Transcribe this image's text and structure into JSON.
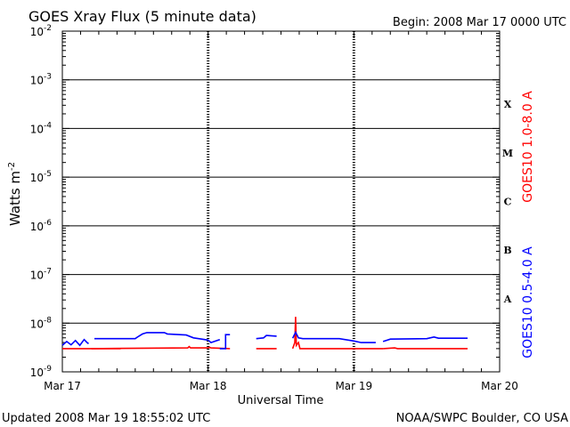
{
  "chart_data": {
    "type": "line",
    "title": "GOES Xray Flux (5 minute data)",
    "begin_label": "Begin:  2008 Mar 17 0000 UTC",
    "ylabel": "Watts m",
    "ylabel_sup": "-2",
    "xlabel": "Universal Time",
    "y_scale": "log",
    "ylim": [
      1e-09,
      0.01
    ],
    "y_ticks": [
      {
        "mantissa": "10",
        "exp": "-2",
        "value": 0.01
      },
      {
        "mantissa": "10",
        "exp": "-3",
        "value": 0.001
      },
      {
        "mantissa": "10",
        "exp": "-4",
        "value": 0.0001
      },
      {
        "mantissa": "10",
        "exp": "-5",
        "value": 1e-05
      },
      {
        "mantissa": "10",
        "exp": "-6",
        "value": 1e-06
      },
      {
        "mantissa": "10",
        "exp": "-7",
        "value": 1e-07
      },
      {
        "mantissa": "10",
        "exp": "-8",
        "value": 1e-08
      },
      {
        "mantissa": "10",
        "exp": "-9",
        "value": 1e-09
      }
    ],
    "x_ticks": [
      "Mar 17",
      "Mar 18",
      "Mar 19",
      "Mar 20"
    ],
    "flare_classes": [
      {
        "label": "X",
        "value": 0.0001
      },
      {
        "label": "M",
        "value": 1e-05
      },
      {
        "label": "C",
        "value": 1e-06
      },
      {
        "label": "B",
        "value": 1e-07
      },
      {
        "label": "A",
        "value": 1e-08
      }
    ],
    "series": [
      {
        "name": "GOES10 1.0-8.0 A",
        "color": "#ff0000",
        "segments": [
          [
            [
              0.0,
              3e-09
            ],
            [
              0.4,
              3e-09
            ]
          ],
          [
            [
              0.2,
              3e-09
            ],
            [
              0.86,
              3.1e-09
            ],
            [
              0.87,
              3.3e-09
            ],
            [
              0.88,
              3.1e-09
            ],
            [
              1.0,
              3.1e-09
            ],
            [
              1.01,
              3.2e-09
            ],
            [
              1.02,
              3.1e-09
            ],
            [
              1.15,
              3e-09
            ]
          ],
          [
            [
              1.33,
              3e-09
            ],
            [
              1.47,
              3e-09
            ]
          ],
          [
            [
              1.58,
              3e-09
            ],
            [
              1.595,
              4e-09
            ],
            [
              1.6,
              1.35e-08
            ],
            [
              1.605,
              3.5e-09
            ],
            [
              1.62,
              4e-09
            ],
            [
              1.63,
              3e-09
            ],
            [
              2.0,
              3e-09
            ],
            [
              2.2,
              3e-09
            ]
          ],
          [
            [
              2.2,
              3e-09
            ],
            [
              2.28,
              3.1e-09
            ],
            [
              2.3,
              3e-09
            ],
            [
              2.78,
              3e-09
            ]
          ]
        ]
      },
      {
        "name": "GOES10 0.5-4.0 A",
        "color": "#0000ff",
        "segments": [
          [
            [
              0.0,
              3.5e-09
            ],
            [
              0.03,
              4.2e-09
            ],
            [
              0.06,
              3.6e-09
            ],
            [
              0.09,
              4.4e-09
            ],
            [
              0.12,
              3.5e-09
            ],
            [
              0.15,
              4.6e-09
            ],
            [
              0.17,
              4e-09
            ],
            [
              0.18,
              3.8e-09
            ]
          ],
          [
            [
              0.22,
              4.8e-09
            ],
            [
              0.5,
              4.8e-09
            ],
            [
              0.52,
              5.3e-09
            ],
            [
              0.55,
              6e-09
            ],
            [
              0.58,
              6.4e-09
            ],
            [
              0.7,
              6.4e-09
            ],
            [
              0.72,
              6e-09
            ],
            [
              0.85,
              5.7e-09
            ],
            [
              0.9,
              5e-09
            ],
            [
              1.0,
              4.5e-09
            ],
            [
              1.02,
              4e-09
            ],
            [
              1.08,
              4.6e-09
            ]
          ],
          [
            [
              1.08,
              3e-09
            ],
            [
              1.12,
              3e-09
            ],
            [
              1.12,
              5.8e-09
            ],
            [
              1.15,
              5.8e-09
            ]
          ],
          [
            [
              1.33,
              4.8e-09
            ],
            [
              1.38,
              5e-09
            ],
            [
              1.4,
              5.6e-09
            ],
            [
              1.47,
              5.4e-09
            ]
          ],
          [
            [
              1.58,
              4.9e-09
            ],
            [
              1.6,
              6.5e-09
            ],
            [
              1.62,
              5e-09
            ],
            [
              1.65,
              4.8e-09
            ],
            [
              1.9,
              4.8e-09
            ],
            [
              2.0,
              4.3e-09
            ],
            [
              2.05,
              4e-09
            ],
            [
              2.15,
              4e-09
            ]
          ],
          [
            [
              2.2,
              4.2e-09
            ],
            [
              2.25,
              4.7e-09
            ],
            [
              2.5,
              4.8e-09
            ],
            [
              2.55,
              5.2e-09
            ],
            [
              2.58,
              4.9e-09
            ],
            [
              2.78,
              4.9e-09
            ]
          ]
        ]
      }
    ],
    "grid": true
  },
  "footer": {
    "updated": "Updated 2008 Mar 19 18:55:02 UTC",
    "source": "NOAA/SWPC Boulder, CO USA"
  }
}
